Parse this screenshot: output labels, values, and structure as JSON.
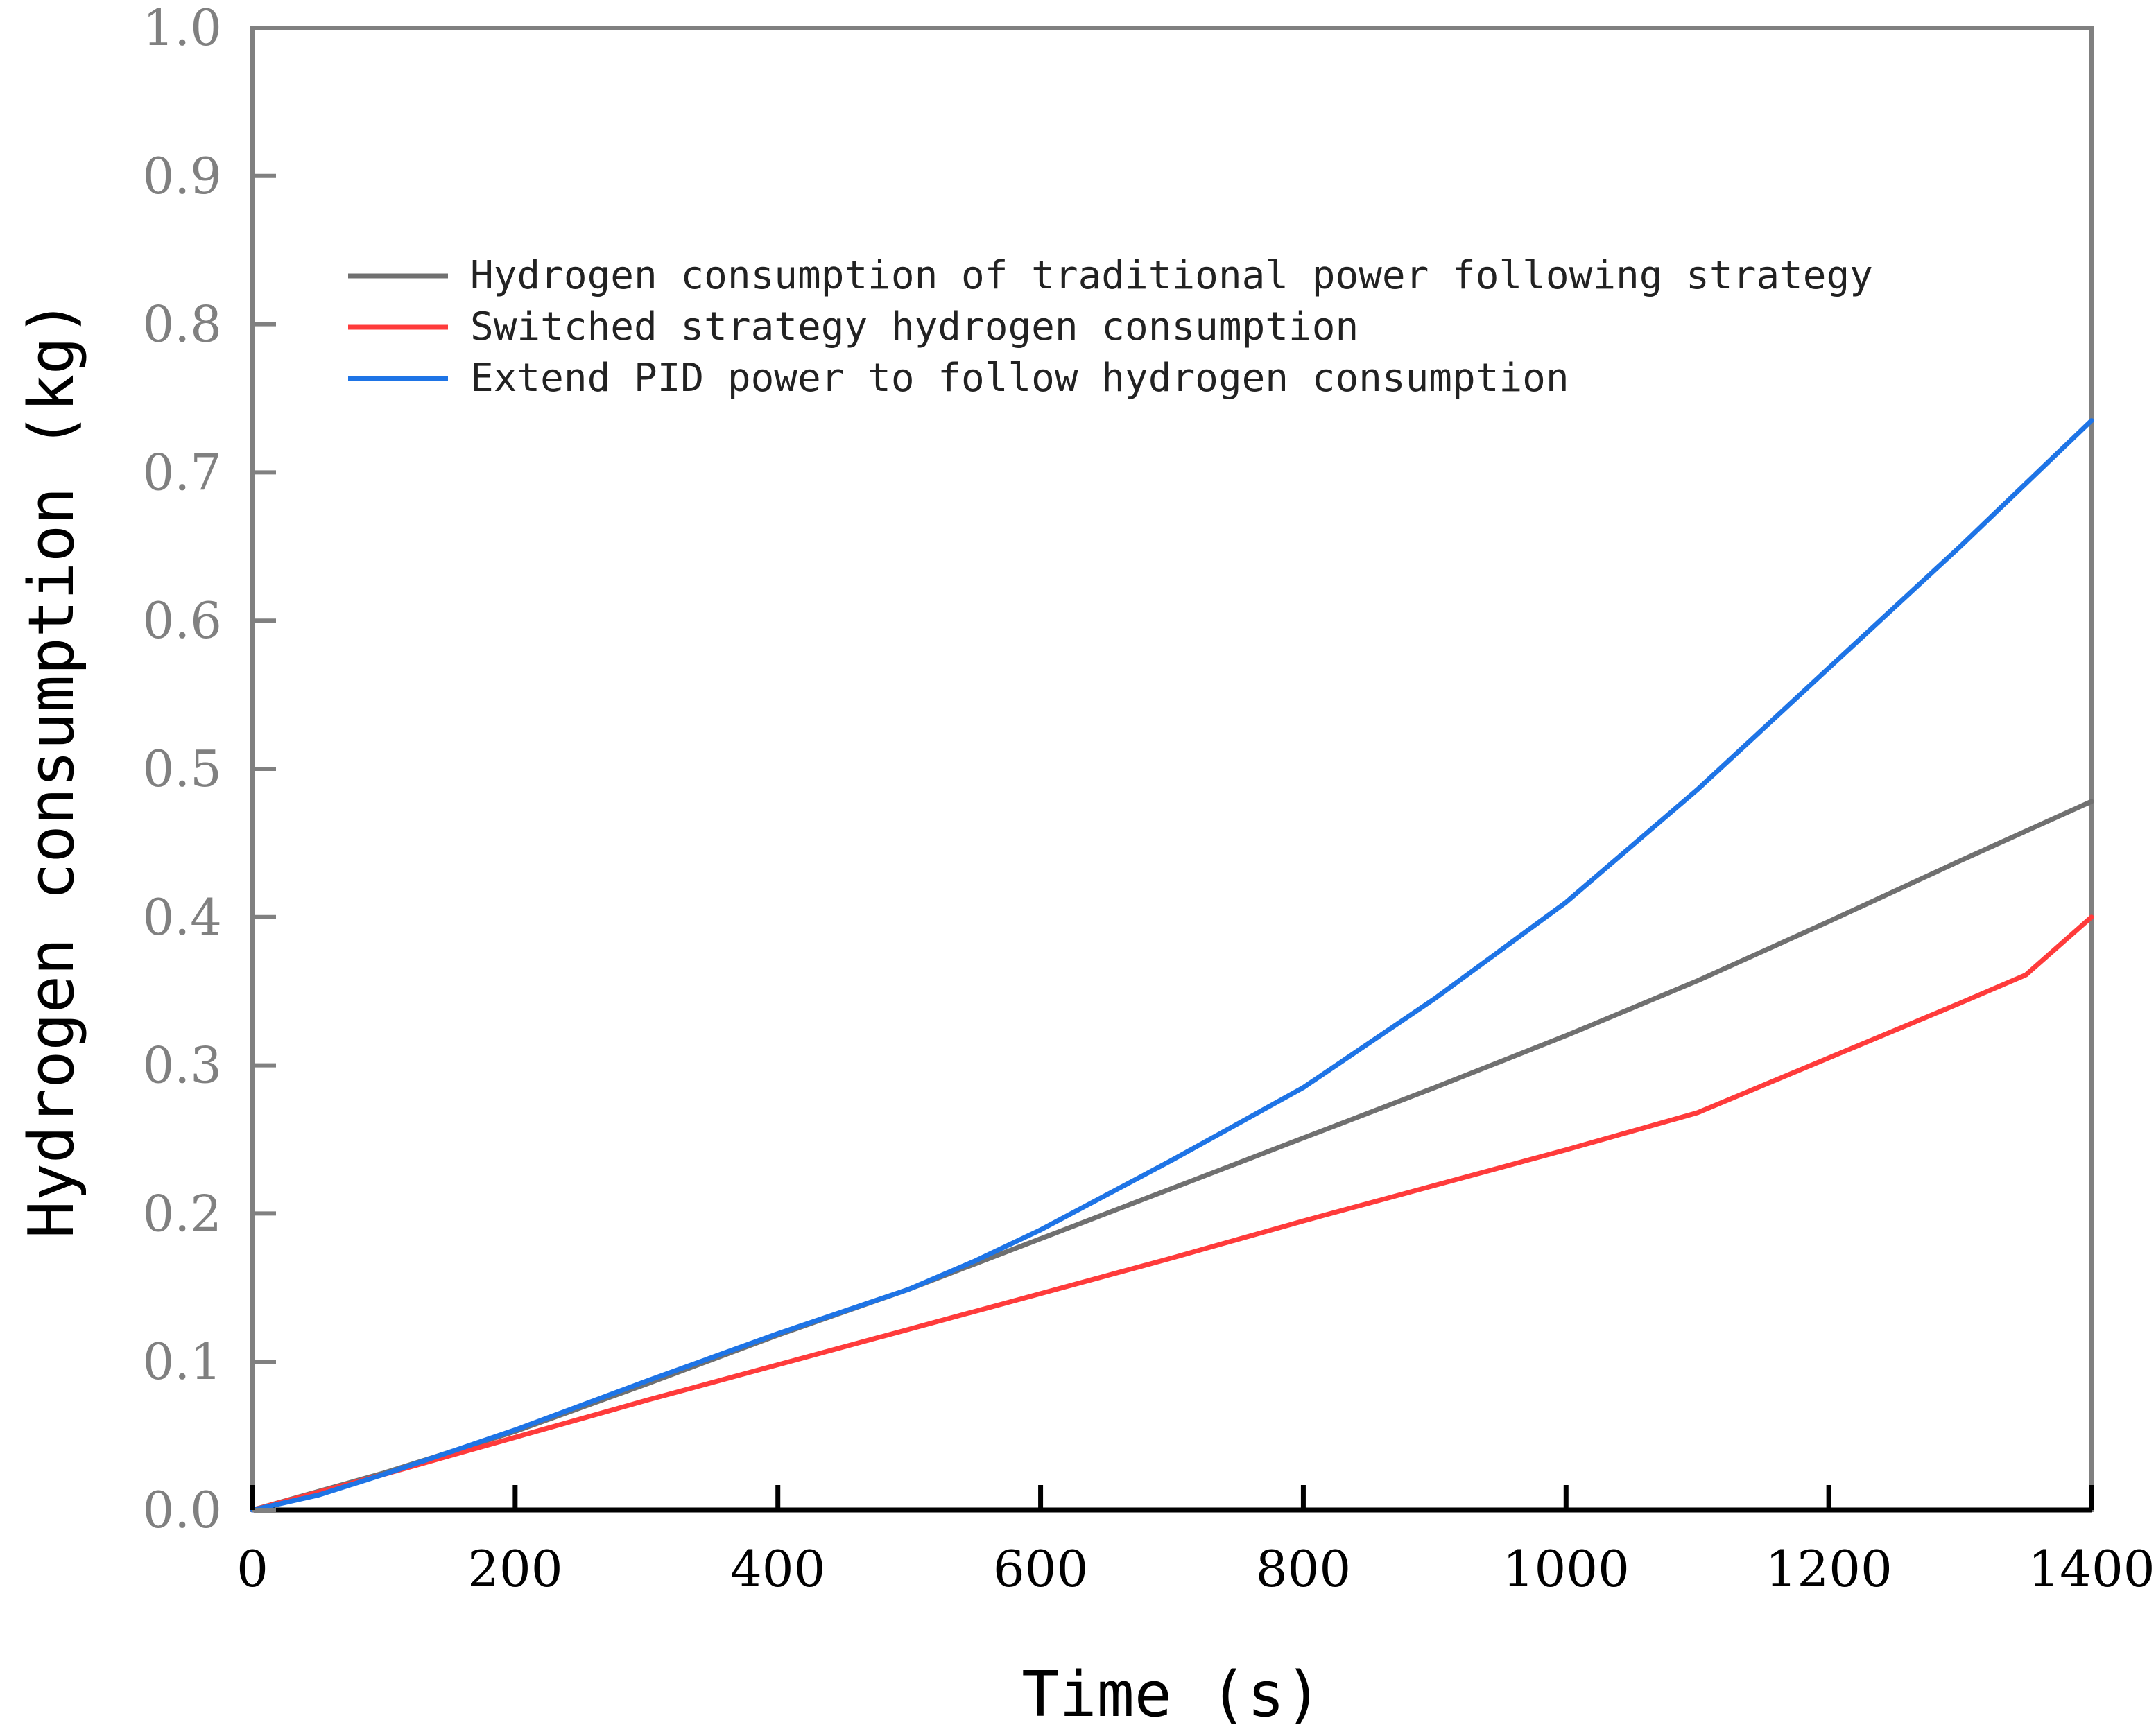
{
  "chart_data": {
    "type": "line",
    "xlabel": "Time (s)",
    "ylabel": "Hydrogen consumption (kg)",
    "xlim": [
      0,
      1400
    ],
    "ylim": [
      0,
      1.0
    ],
    "x_ticks": [
      "0",
      "200",
      "400",
      "600",
      "800",
      "1000",
      "1200",
      "1400"
    ],
    "y_ticks": [
      "0.0",
      "0.1",
      "0.2",
      "0.3",
      "0.4",
      "0.5",
      "0.6",
      "0.7",
      "0.8",
      "0.9",
      "1.0"
    ],
    "grid": false,
    "legend_position": "upper-left",
    "series": [
      {
        "name": "Hydrogen consumption of traditional power following strategy",
        "color": "#707070",
        "x": [
          0,
          100,
          200,
          300,
          400,
          500,
          600,
          700,
          800,
          900,
          1000,
          1100,
          1200,
          1300,
          1400
        ],
        "y": [
          0,
          0.025,
          0.053,
          0.085,
          0.118,
          0.149,
          0.183,
          0.217,
          0.251,
          0.285,
          0.32,
          0.357,
          0.397,
          0.438,
          0.478
        ]
      },
      {
        "name": "Switched strategy hydrogen consumption",
        "color": "#ff3b3b",
        "x": [
          0,
          100,
          200,
          300,
          400,
          500,
          600,
          700,
          800,
          900,
          1000,
          1100,
          1200,
          1300,
          1350,
          1400
        ],
        "y": [
          0,
          0.024,
          0.049,
          0.074,
          0.098,
          0.122,
          0.146,
          0.17,
          0.195,
          0.219,
          0.243,
          0.268,
          0.305,
          0.342,
          0.361,
          0.4
        ]
      },
      {
        "name": "Extend PID power to follow hydrogen consumption",
        "color": "#1e74e6",
        "x": [
          0,
          50,
          100,
          200,
          300,
          400,
          500,
          550,
          600,
          700,
          800,
          900,
          1000,
          1100,
          1200,
          1300,
          1400
        ],
        "y": [
          0,
          0.01,
          0.024,
          0.054,
          0.087,
          0.119,
          0.149,
          0.168,
          0.189,
          0.236,
          0.285,
          0.345,
          0.41,
          0.486,
          0.568,
          0.65,
          0.735
        ]
      }
    ]
  }
}
